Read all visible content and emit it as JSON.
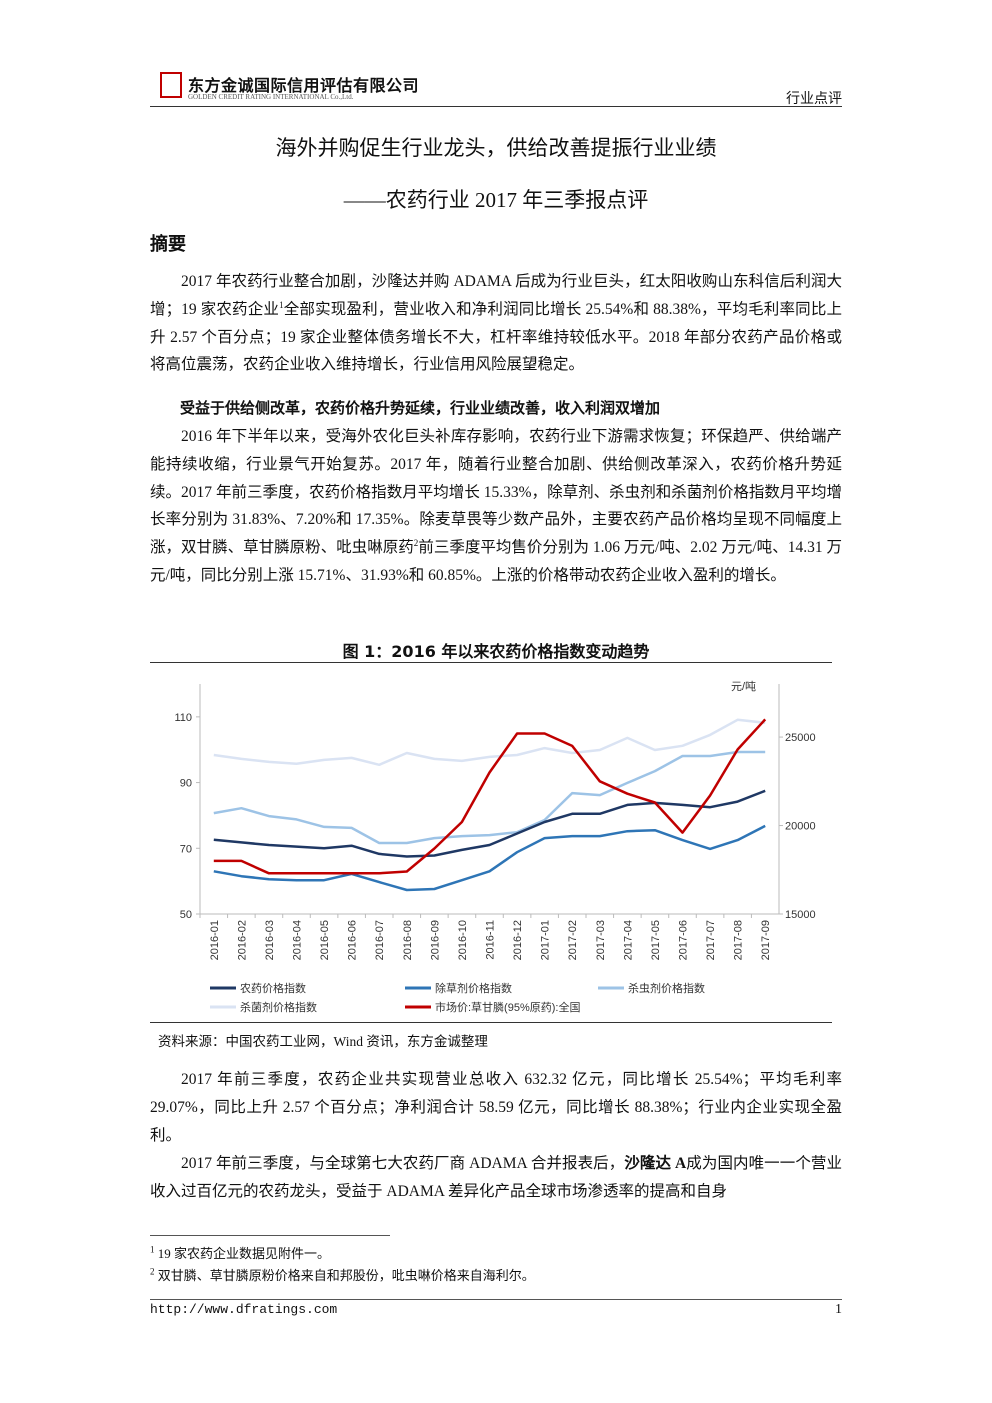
{
  "header": {
    "company_name": "东方金诚国际信用评估有限公司",
    "company_name_en": "GOLDEN CREDIT RATING INTERNATIONAL Co.,Ltd.",
    "section": "行业点评"
  },
  "title": "海外并购促生行业龙头，供给改善提振行业业绩",
  "subtitle": "——农药行业 2017 年三季报点评",
  "summary_heading": "摘要",
  "summary": [
    "2017 年农药行业整合加剧，沙隆达并购 ADAMA 后成为行业巨头，红太阳收购山东科信后利润大增；19 家农药企业",
    "1",
    "全部实现盈利，营业收入和净利润同比增长 25.54%和 88.38%，平均毛利率同比上升 2.57 个百分点；19 家企业整体债务增长不大，杠杆率维持较低水平。2018 年部分农药产品价格或将高位震荡，农药企业收入维持增长，行业信用风险展望稳定。"
  ],
  "section_heading": "受益于供给侧改革，农药价格升势延续，行业业绩改善，收入利润双增加",
  "section_paragraph": [
    "2016 年下半年以来，受海外农化巨头补库存影响，农药行业下游需求恢复；环保趋严、供给端产能持续收缩，行业景气开始复苏。2017 年，随着行业整合加剧、供给侧改革深入，农药价格升势延续。2017 年前三季度，农药价格指数月平均增长 15.33%，除草剂、杀虫剂和杀菌剂价格指数月平均增长率分别为 31.83%、7.20%和 17.35%。除麦草畏等少数产品外，主要农药产品价格均呈现不同幅度上涨，双甘膦、草甘膦原粉、吡虫啉原药",
    "2",
    "前三季度平均售价分别为 1.06 万元/吨、2.02 万元/吨、14.31 万元/吨，同比分别上涨 15.71%、31.93%和 60.85%。上涨的价格带动农药企业收入盈利的增长。"
  ],
  "figure": {
    "title": "图 1：2016 年以来农药价格指数变动趋势",
    "chart_data": {
      "type": "line",
      "categories": [
        "2016-01",
        "2016-02",
        "2016-03",
        "2016-04",
        "2016-05",
        "2016-06",
        "2016-07",
        "2016-08",
        "2016-09",
        "2016-10",
        "2016-11",
        "2016-12",
        "2017-01",
        "2017-02",
        "2017-03",
        "2017-04",
        "2017-05",
        "2017-06",
        "2017-07",
        "2017-08",
        "2017-09"
      ],
      "ylim": [
        50,
        120
      ],
      "yticks": [
        50,
        70,
        90,
        110
      ],
      "y2lim": [
        15000,
        28000
      ],
      "y2ticks": [
        15000,
        20000,
        25000
      ],
      "y2_label": "元/吨",
      "series": [
        {
          "name": "农药价格指数",
          "color": "#1f3864",
          "values": [
            72.6,
            71.8,
            71,
            70.5,
            70,
            70.8,
            68.3,
            67.5,
            67.8,
            69.5,
            71,
            74.5,
            78,
            80.5,
            80.5,
            83.2,
            83.8,
            83.2,
            82.5,
            84.2,
            87.5
          ]
        },
        {
          "name": "除草剂价格指数",
          "color": "#2e75b6",
          "values": [
            63,
            61.5,
            60.6,
            60.3,
            60.3,
            62.2,
            59.7,
            57.3,
            57.6,
            60.3,
            63,
            68.8,
            73.1,
            73.7,
            73.7,
            75.2,
            75.5,
            72.5,
            69.8,
            72.5,
            76.8
          ]
        },
        {
          "name": "杀虫剂价格指数",
          "color": "#9dc3e6",
          "values": [
            80.7,
            82.2,
            79.8,
            78.8,
            76.5,
            76.2,
            71.6,
            71.6,
            73.1,
            73.7,
            74,
            74.9,
            78.6,
            86.8,
            86.2,
            89.9,
            93.5,
            98.1,
            98.1,
            99.3,
            99.3
          ]
        },
        {
          "name": "杀菌剂价格指数",
          "color": "#dae3f3",
          "values": [
            98.4,
            97.2,
            96.3,
            95.7,
            96.9,
            97.5,
            95.4,
            99,
            97.2,
            96.6,
            97.8,
            98.4,
            100.5,
            99,
            99.9,
            103.6,
            99.9,
            101.2,
            104.5,
            109.1,
            108.2
          ]
        },
        {
          "name": "市场价:草甘膦(95%原药):全国",
          "color": "#c00000",
          "axis": "y2",
          "values": [
            18000,
            18000,
            17300,
            17300,
            17300,
            17300,
            17300,
            17400,
            18700,
            20200,
            23000,
            25200,
            25200,
            24500,
            22500,
            21800,
            21300,
            19600,
            21700,
            24300,
            26000
          ]
        }
      ]
    },
    "source": "资料来源：中国农药工业网，Wind 资讯，东方金诚整理"
  },
  "body": [
    [
      "2017 年前三季度，农药企业共实现营业总收入 632.32 亿元，同比增长 25.54%；平均毛利率 29.07%，同比上升 2.57 个百分点；净利润合计 58.59 亿元，同比增长 88.38%；行业内企业实现全盈利。"
    ],
    [
      "2017 年前三季度，与全球第七大农药厂商 ADAMA 合并报表后，",
      "沙隆达 A",
      "成为国内唯一一个营业收入过百亿元的农药龙头，受益于 ADAMA 差异化产品全球市场渗透率的提高和自身"
    ]
  ],
  "footnotes": [
    [
      "1",
      "19 家农药企业数据见附件一。"
    ],
    [
      "2",
      "双甘膦、草甘膦原粉价格来自和邦股份，吡虫啉价格来自海利尔。"
    ]
  ],
  "footer": {
    "url": "http://www.dfratings.com",
    "page": "1"
  }
}
